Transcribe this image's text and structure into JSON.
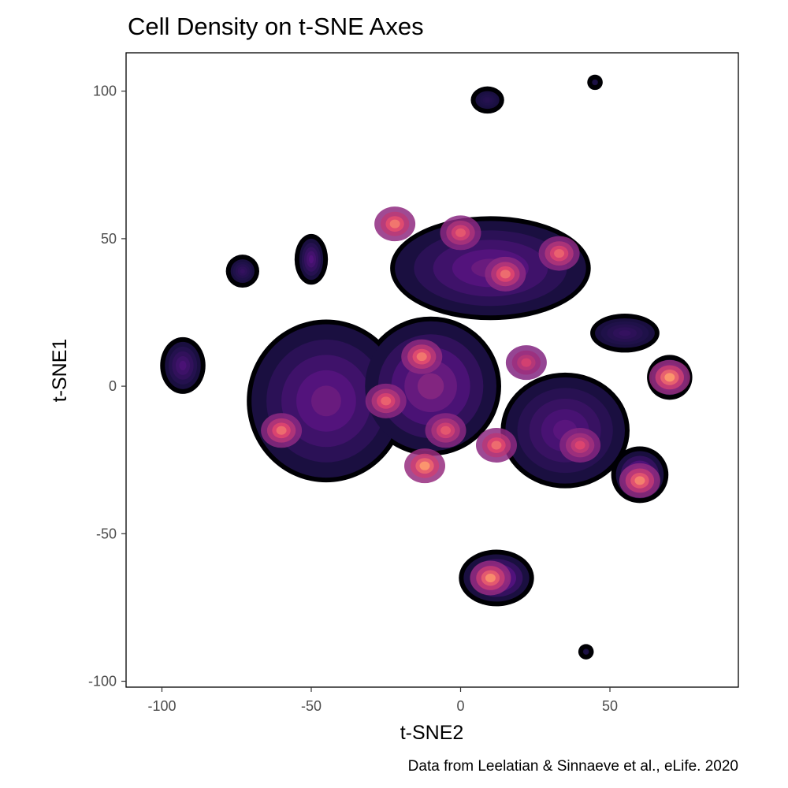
{
  "chart_data": {
    "type": "heatmap",
    "title": "Cell Density on t-SNE Axes",
    "xlabel": "t-SNE2",
    "ylabel": "t-SNE1",
    "caption": "Data from Leelatian & Sinnaeve et al., eLife. 2020",
    "xlim": [
      -112,
      93
    ],
    "ylim": [
      -102,
      113
    ],
    "x_ticks": [
      -100,
      -50,
      0,
      50
    ],
    "y_ticks": [
      100,
      50,
      0,
      -50,
      -100
    ],
    "grid": false,
    "colormap": "magma",
    "colors": {
      "outline": "#000004",
      "low": "#1d1147",
      "mid": "#721f81",
      "high": "#e2466e",
      "peak": "#fe9f6d",
      "axis": "#000000"
    },
    "clusters": [
      {
        "x": -93,
        "y": 7,
        "sx": 6,
        "sy": 8,
        "density": 0.35
      },
      {
        "x": -73,
        "y": 39,
        "sx": 4,
        "sy": 4,
        "density": 0.2
      },
      {
        "x": -50,
        "y": 43,
        "sx": 4,
        "sy": 7,
        "density": 0.4
      },
      {
        "x": 9,
        "y": 97,
        "sx": 4,
        "sy": 3,
        "density": 0.1
      },
      {
        "x": 45,
        "y": 103,
        "sx": 1,
        "sy": 1,
        "density": 0.05
      },
      {
        "x": 42,
        "y": -90,
        "sx": 1,
        "sy": 1,
        "density": 0.05
      },
      {
        "x": -45,
        "y": -5,
        "sx": 25,
        "sy": 26,
        "density": 0.55
      },
      {
        "x": -10,
        "y": 0,
        "sx": 22,
        "sy": 22,
        "density": 0.7
      },
      {
        "x": 10,
        "y": 40,
        "sx": 32,
        "sy": 16,
        "density": 0.55
      },
      {
        "x": 35,
        "y": -15,
        "sx": 20,
        "sy": 18,
        "density": 0.45
      },
      {
        "x": 12,
        "y": -65,
        "sx": 11,
        "sy": 8,
        "density": 0.8
      },
      {
        "x": 70,
        "y": 3,
        "sx": 6,
        "sy": 6,
        "density": 0.95
      },
      {
        "x": 60,
        "y": -30,
        "sx": 8,
        "sy": 8,
        "density": 0.75
      },
      {
        "x": 55,
        "y": 18,
        "sx": 10,
        "sy": 5,
        "density": 0.2
      }
    ],
    "hotspots": [
      {
        "x": -22,
        "y": 55,
        "value": 0.85
      },
      {
        "x": 0,
        "y": 52,
        "value": 0.7
      },
      {
        "x": 15,
        "y": 38,
        "value": 0.8
      },
      {
        "x": 33,
        "y": 45,
        "value": 0.75
      },
      {
        "x": -13,
        "y": 10,
        "value": 0.85
      },
      {
        "x": -25,
        "y": -5,
        "value": 0.75
      },
      {
        "x": -60,
        "y": -15,
        "value": 0.8
      },
      {
        "x": -12,
        "y": -27,
        "value": 1.0
      },
      {
        "x": 12,
        "y": -20,
        "value": 0.8
      },
      {
        "x": 22,
        "y": 8,
        "value": 0.55
      },
      {
        "x": 40,
        "y": -20,
        "value": 0.6
      },
      {
        "x": 60,
        "y": -32,
        "value": 0.9
      },
      {
        "x": 70,
        "y": 3,
        "value": 1.0
      },
      {
        "x": 10,
        "y": -65,
        "value": 0.95
      },
      {
        "x": -5,
        "y": -15,
        "value": 0.7
      }
    ]
  }
}
